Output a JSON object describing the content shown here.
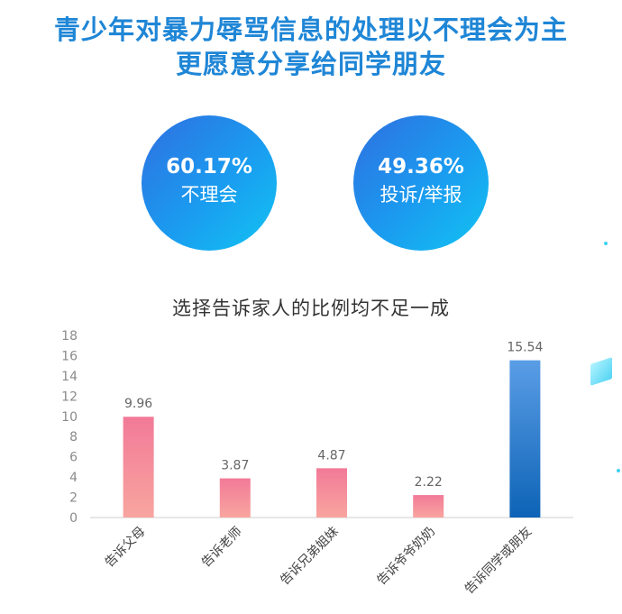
{
  "headline": {
    "line1": "青少年对暴力辱骂信息的处理以不理会为主",
    "line2": "更愿意分享给同学朋友"
  },
  "stats": [
    {
      "value": "60.17%",
      "label": "不理会"
    },
    {
      "value": "49.36%",
      "label": "投诉/举报"
    }
  ],
  "colors": {
    "headline": "#1f86d6",
    "bar_pink": "#f1869e",
    "bar_blue": "#1f7fd0"
  },
  "chart_data": {
    "type": "bar",
    "title": "选择告诉家人的比例均不足一成",
    "categories": [
      "告诉父母",
      "告诉老师",
      "告诉兄弟姐妹",
      "告诉爷爷奶奶",
      "告诉同学或朋友"
    ],
    "values": [
      9.96,
      3.87,
      4.87,
      2.22,
      15.54
    ],
    "value_labels": [
      "9.96",
      "3.87",
      "4.87",
      "2.22",
      "15.54"
    ],
    "yticks": [
      "0",
      "2",
      "4",
      "6",
      "8",
      "10",
      "12",
      "14",
      "16",
      "18"
    ],
    "ylim": [
      0,
      18
    ],
    "grid": false,
    "highlight_index": 4
  }
}
